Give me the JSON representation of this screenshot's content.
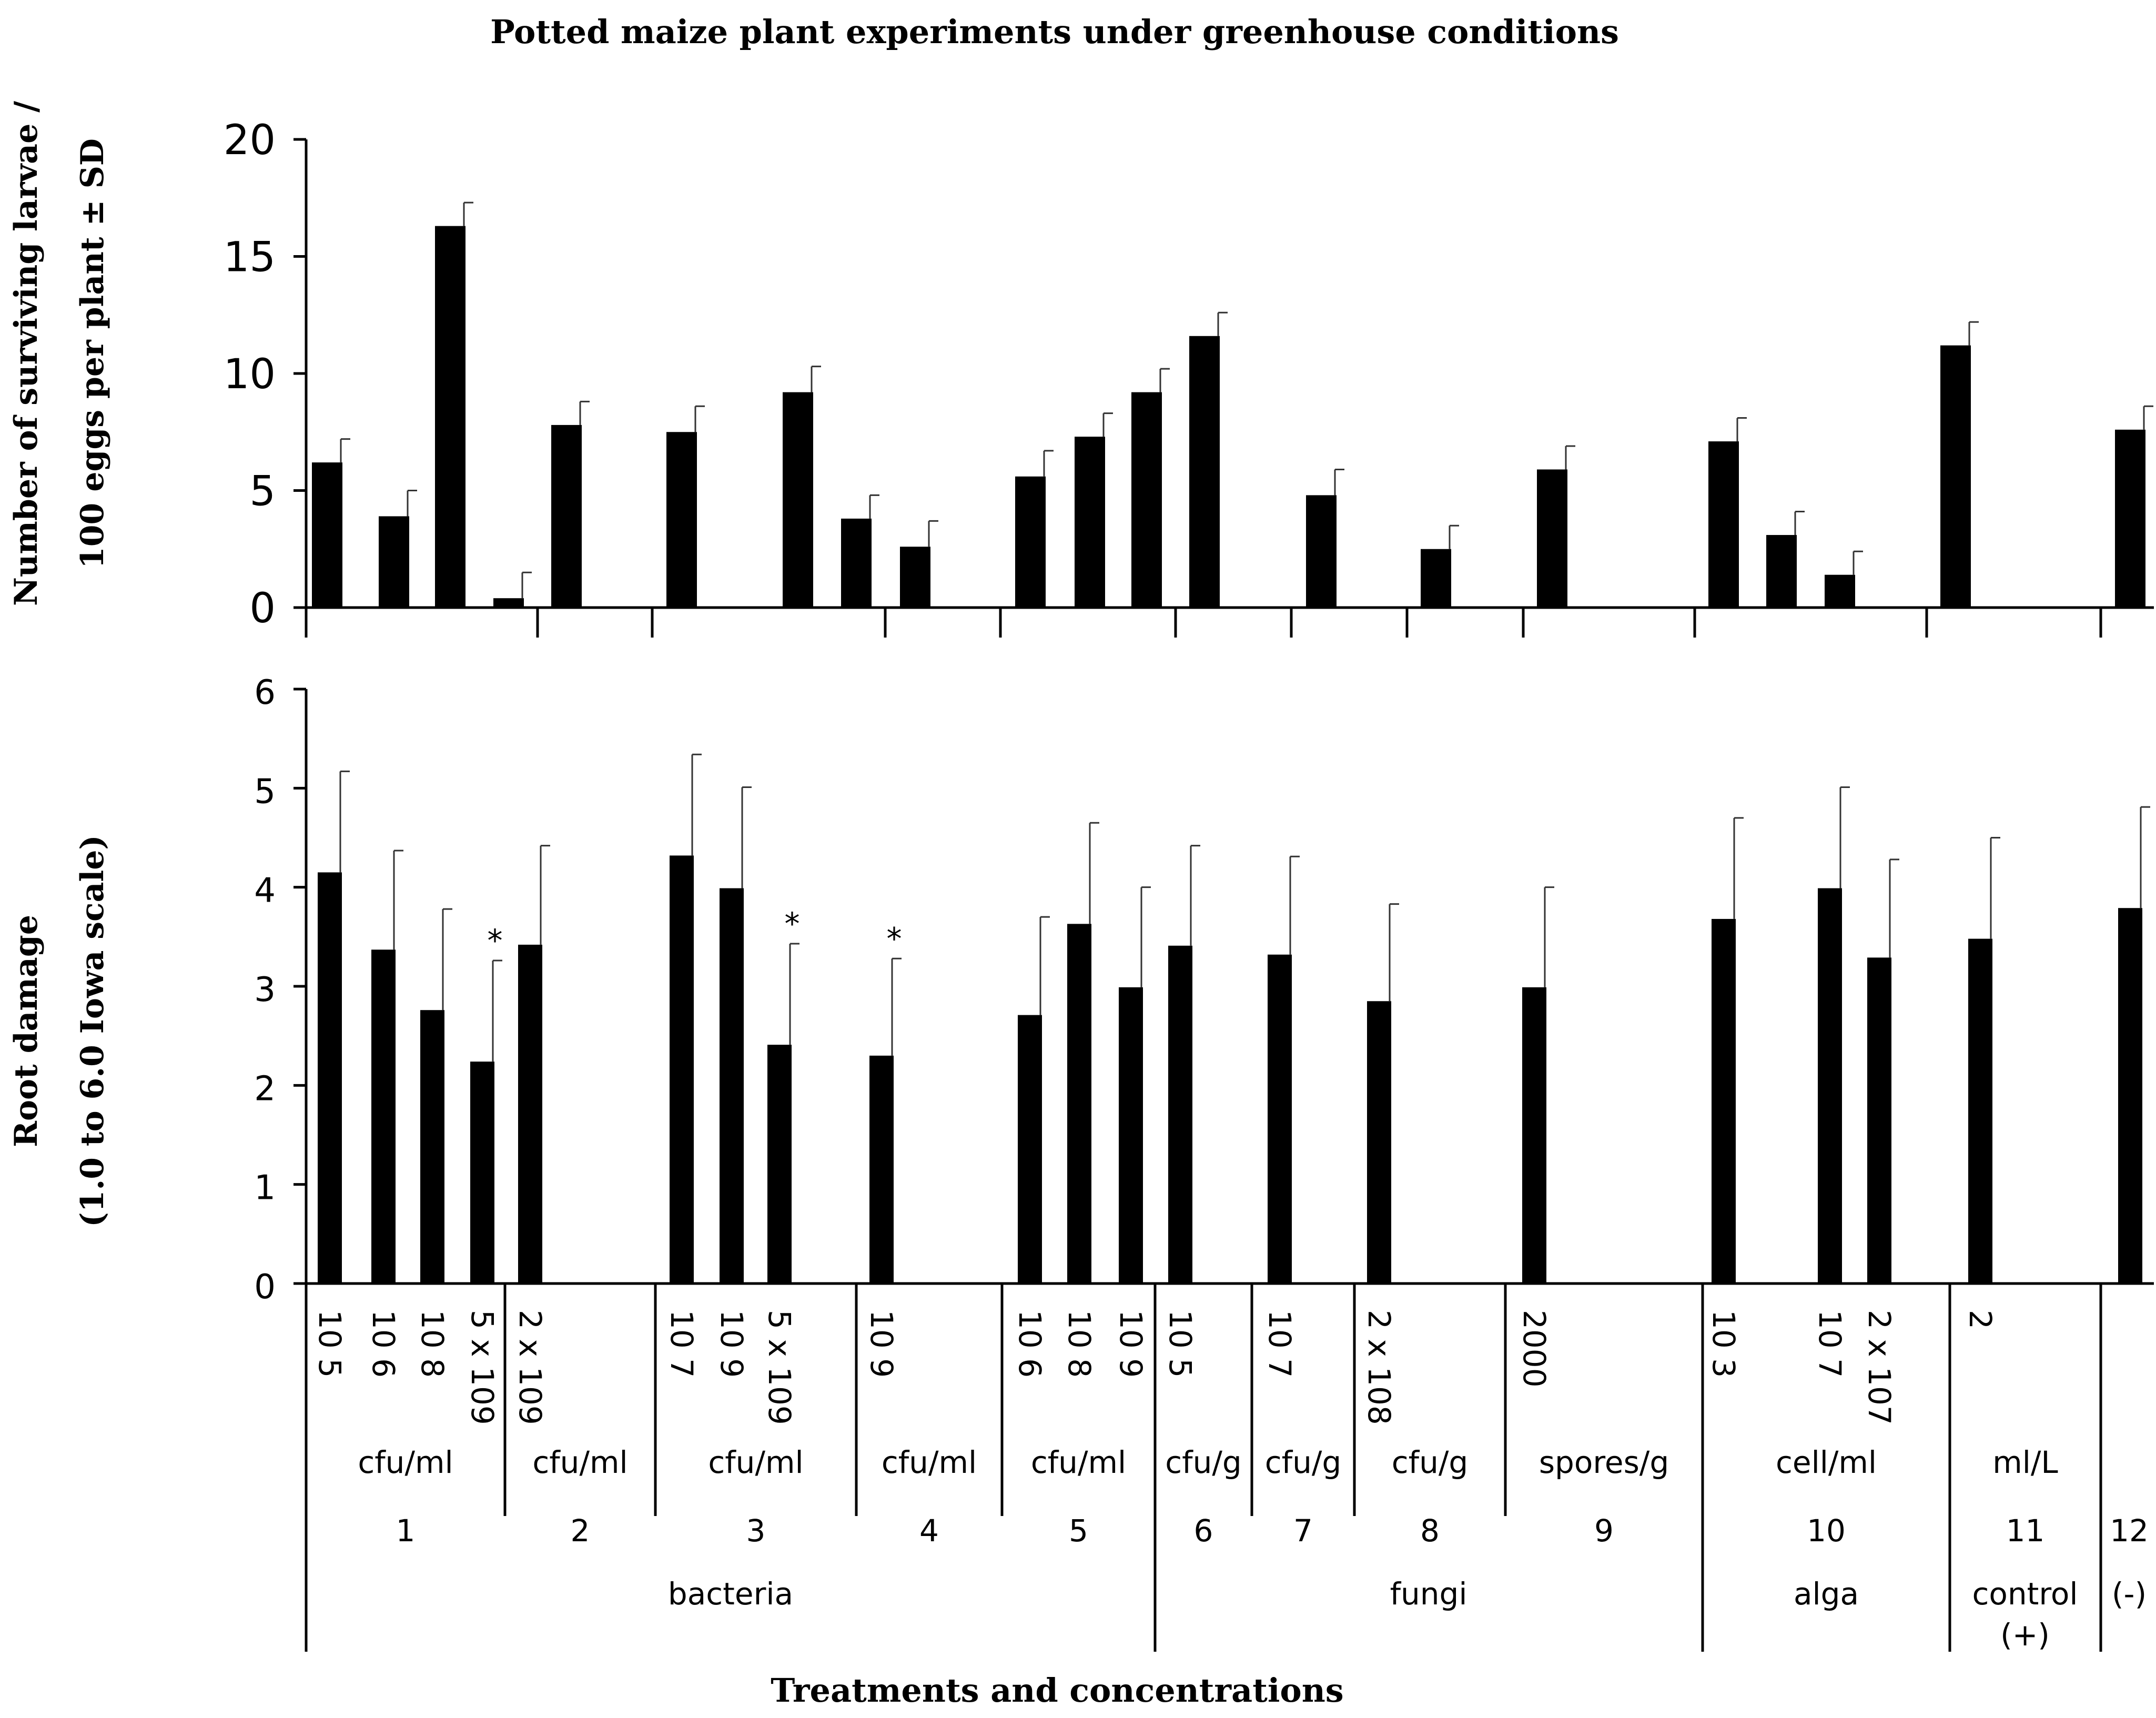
{
  "chart_data": [
    {
      "type": "bar",
      "panel": "top",
      "title": "Potted maize plant experiments under greenhouse conditions",
      "ylabel": [
        "Number of surviving larvae /",
        "100 eggs per plant ± SD"
      ],
      "ylim": [
        0,
        20
      ],
      "yticks": [
        0,
        5,
        10,
        15,
        20
      ],
      "grid": false,
      "values": [
        6.2,
        3.9,
        16.3,
        0.4,
        7.8,
        7.5,
        9.2,
        3.8,
        2.6,
        5.6,
        7.3,
        9.2,
        11.6,
        4.8,
        2.5,
        5.9,
        7.1,
        3.1,
        1.4,
        11.2,
        7.6
      ],
      "errors": [
        1.0,
        1.1,
        1.0,
        1.1,
        1.0,
        1.1,
        1.1,
        1.0,
        1.1,
        1.1,
        1.0,
        1.0,
        1.0,
        1.1,
        1.0,
        1.0,
        1.0,
        1.0,
        1.0,
        1.0,
        1.0
      ]
    },
    {
      "type": "bar",
      "panel": "bottom",
      "ylabel": [
        "Root damage",
        "(1.0 to 6.0 Iowa scale)"
      ],
      "xlabel": "Treatments and concentrations",
      "ylim": [
        0,
        6
      ],
      "yticks": [
        0,
        1,
        2,
        3,
        4,
        5,
        6
      ],
      "grid": false,
      "categories": [
        "10 5",
        "10 6",
        "10 8",
        "5 x 109",
        "2 x 109",
        "10 7",
        "10 9",
        "5 x 109",
        "10 9",
        "10 6",
        "10 8",
        "10 9",
        "10 5",
        "10 7",
        "2 x 108",
        "2000",
        "10 3",
        "10 7",
        "2 x 107",
        "2",
        ""
      ],
      "values": [
        4.15,
        3.37,
        2.76,
        2.24,
        3.42,
        4.32,
        3.99,
        2.41,
        2.3,
        2.71,
        3.63,
        2.99,
        3.41,
        3.32,
        2.85,
        2.99,
        3.68,
        3.99,
        3.29,
        3.48,
        3.79
      ],
      "errors": [
        1.02,
        1.0,
        1.02,
        1.02,
        1.0,
        1.02,
        1.02,
        1.02,
        0.98,
        0.99,
        1.02,
        1.01,
        1.01,
        0.99,
        0.98,
        1.01,
        1.02,
        1.02,
        0.99,
        1.02,
        1.02
      ],
      "significant": [
        false,
        false,
        false,
        true,
        false,
        false,
        false,
        true,
        true,
        false,
        false,
        false,
        false,
        false,
        false,
        false,
        false,
        false,
        false,
        false,
        false
      ],
      "significance_marker": "*",
      "groups": [
        {
          "number": "1",
          "unit": "cfu/ml"
        },
        {
          "number": "2",
          "unit": "cfu/ml"
        },
        {
          "number": "3",
          "unit": "cfu/ml"
        },
        {
          "number": "4",
          "unit": "cfu/ml"
        },
        {
          "number": "5",
          "unit": "cfu/ml"
        },
        {
          "number": "6",
          "unit": "cfu/g"
        },
        {
          "number": "7",
          "unit": "cfu/g"
        },
        {
          "number": "8",
          "unit": "cfu/g"
        },
        {
          "number": "9",
          "unit": "spores/g"
        },
        {
          "number": "10",
          "unit": "cell/ml"
        },
        {
          "number": "11",
          "unit": "ml/L"
        },
        {
          "number": "12",
          "unit": ""
        }
      ],
      "classes": [
        {
          "label": "bacteria"
        },
        {
          "label": "fungi"
        },
        {
          "label": "alga"
        },
        {
          "label": "control",
          "label2": "(+)"
        },
        {
          "label": "(-)"
        }
      ]
    }
  ]
}
